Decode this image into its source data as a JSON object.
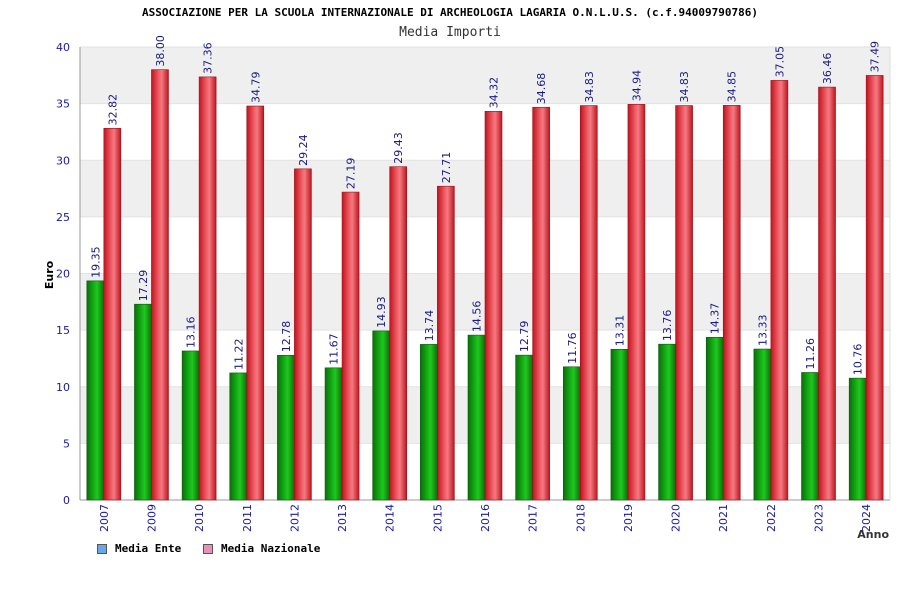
{
  "chart_data": {
    "type": "bar",
    "title": "ASSOCIAZIONE PER LA SCUOLA INTERNAZIONALE DI ARCHEOLOGIA LAGARIA O.N.L.U.S. (c.f.94009790786)",
    "subtitle": "Media Importi",
    "xlabel": "Anno",
    "ylabel": "Euro",
    "ylim": [
      0,
      40
    ],
    "yticks": [
      0,
      5,
      10,
      15,
      20,
      25,
      30,
      35,
      40
    ],
    "categories": [
      "2007",
      "2009",
      "2010",
      "2011",
      "2012",
      "2013",
      "2014",
      "2015",
      "2016",
      "2017",
      "2018",
      "2019",
      "2020",
      "2021",
      "2022",
      "2023",
      "2024"
    ],
    "series": [
      {
        "name": "Media Ente",
        "legend_color": "#6aa6e8",
        "bar_color": "#13a313",
        "values": [
          19.35,
          17.29,
          13.16,
          11.22,
          12.78,
          11.67,
          14.93,
          13.74,
          14.56,
          12.79,
          11.76,
          13.31,
          13.76,
          14.37,
          13.33,
          11.26,
          10.76
        ],
        "labels": [
          "19.35",
          "17.29",
          "13.16",
          "11.22",
          "12.78",
          "11.67",
          "14.93",
          "13.74",
          "14.56",
          "12.79",
          "11.76",
          "13.31",
          "13.76",
          "14.37",
          "13.33",
          "11.26",
          "10.76"
        ]
      },
      {
        "name": "Media Nazionale",
        "legend_color": "#e890b8",
        "bar_color": "#e8303c",
        "values": [
          32.82,
          38.0,
          37.36,
          34.79,
          29.24,
          27.19,
          29.43,
          27.71,
          34.32,
          34.68,
          34.83,
          34.94,
          34.83,
          34.85,
          37.05,
          36.46,
          37.49
        ],
        "labels": [
          "32.82",
          "38.00",
          "37.36",
          "34.79",
          "29.24",
          "27.19",
          "29.43",
          "27.71",
          "34.32",
          "34.68",
          "34.83",
          "34.94",
          "34.83",
          "34.85",
          "37.05",
          "36.46",
          "37.49"
        ]
      }
    ],
    "grid": true,
    "legend": "bottom-left",
    "colors": {
      "axis_text": "#1a1aa0",
      "label_text": "#1a1a80",
      "band": "#efefef"
    }
  }
}
